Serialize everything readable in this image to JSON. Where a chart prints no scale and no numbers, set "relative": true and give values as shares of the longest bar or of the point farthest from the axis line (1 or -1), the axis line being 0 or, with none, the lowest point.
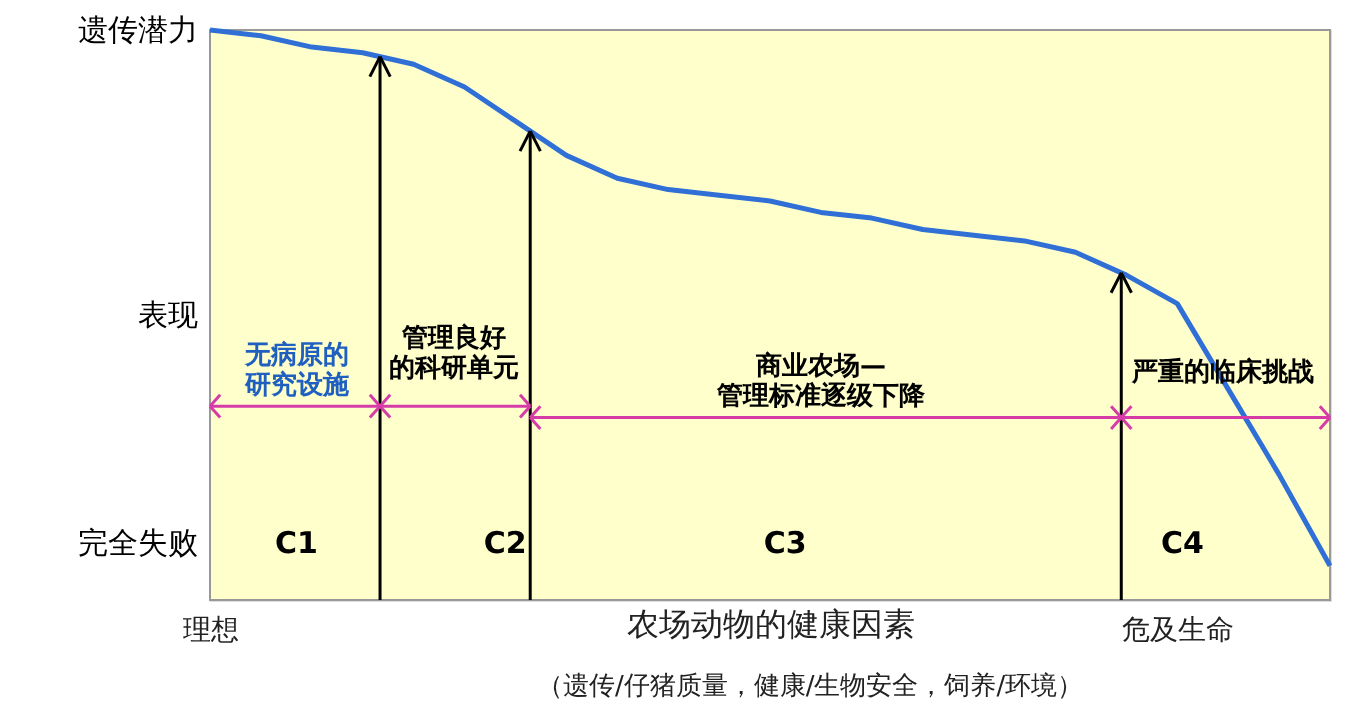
{
  "chart_data": {
    "type": "line",
    "relative": true,
    "categories": [
      "理想",
      null,
      null,
      null,
      null,
      null,
      null,
      null,
      null,
      null,
      null,
      null,
      null,
      null,
      null,
      null,
      null,
      null,
      null,
      "危及生命",
      null,
      null,
      null
    ],
    "series": [
      {
        "color": "#2f6fd6",
        "values": [
          1.0,
          0.99,
          0.97,
          0.96,
          0.94,
          0.9,
          0.84,
          0.78,
          0.74,
          0.72,
          0.71,
          0.7,
          0.68,
          0.67,
          0.65,
          0.64,
          0.63,
          0.61,
          0.57,
          0.52,
          0.37,
          0.22,
          0.06
        ]
      }
    ],
    "xlabel": "农场动物的健康因素",
    "annotations": [
      "遗传潜力",
      "表现",
      "完全失败",
      "无病原的研究设施",
      "管理良好的科研单元",
      "商业农场—管理标准逐级下降",
      "严重的临床挑战",
      "C1",
      "C2",
      "C3",
      "C4",
      "（遗传/仔猪质量，健康/生物安全，饲养/环境）"
    ],
    "marker": "none",
    "line_style": "solid"
  }
}
